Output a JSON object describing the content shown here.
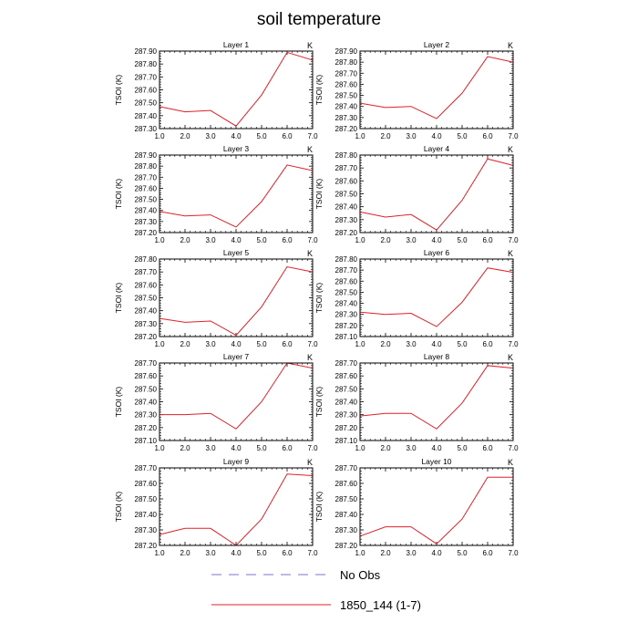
{
  "title": "soil temperature",
  "x_ticks": [
    "1.0",
    "2.0",
    "3.0",
    "4.0",
    "5.0",
    "6.0",
    "7.0"
  ],
  "legend": [
    {
      "label": "No Obs",
      "color": "#7777cc",
      "style": "dashed"
    },
    {
      "label": "1850_144 (1-7)",
      "color": "#e0202a",
      "style": "solid"
    }
  ],
  "chart_data": [
    {
      "type": "line",
      "title": "Layer 1",
      "ylabel": "TSOI  (K)",
      "unit": "K",
      "xlim": [
        1,
        7
      ],
      "ylim": [
        287.3,
        287.9
      ],
      "y_ticks": [
        "287.30",
        "287.40",
        "287.50",
        "287.60",
        "287.70",
        "287.80",
        "287.90"
      ],
      "series": [
        {
          "name": "1850_144 (1-7)",
          "x": [
            1,
            2,
            3,
            4,
            5,
            6,
            7
          ],
          "values": [
            287.47,
            287.43,
            287.44,
            287.32,
            287.56,
            287.89,
            287.83
          ]
        }
      ]
    },
    {
      "type": "line",
      "title": "Layer 2",
      "ylabel": "TSOI  (K)",
      "unit": "K",
      "xlim": [
        1,
        7
      ],
      "ylim": [
        287.2,
        287.9
      ],
      "y_ticks": [
        "287.20",
        "287.30",
        "287.40",
        "287.50",
        "287.60",
        "287.70",
        "287.80",
        "287.90"
      ],
      "series": [
        {
          "name": "1850_144 (1-7)",
          "x": [
            1,
            2,
            3,
            4,
            5,
            6,
            7
          ],
          "values": [
            287.43,
            287.39,
            287.4,
            287.29,
            287.52,
            287.85,
            287.8
          ]
        }
      ]
    },
    {
      "type": "line",
      "title": "Layer 3",
      "ylabel": "TSOI  (K)",
      "unit": "K",
      "xlim": [
        1,
        7
      ],
      "ylim": [
        287.2,
        287.9
      ],
      "y_ticks": [
        "287.20",
        "287.30",
        "287.40",
        "287.50",
        "287.60",
        "287.70",
        "287.80",
        "287.90"
      ],
      "series": [
        {
          "name": "1850_144 (1-7)",
          "x": [
            1,
            2,
            3,
            4,
            5,
            6,
            7
          ],
          "values": [
            287.39,
            287.35,
            287.36,
            287.25,
            287.48,
            287.81,
            287.76
          ]
        }
      ]
    },
    {
      "type": "line",
      "title": "Layer 4",
      "ylabel": "TSOI  (K)",
      "unit": "K",
      "xlim": [
        1,
        7
      ],
      "ylim": [
        287.2,
        287.8
      ],
      "y_ticks": [
        "287.20",
        "287.30",
        "287.40",
        "287.50",
        "287.60",
        "287.70",
        "287.80"
      ],
      "series": [
        {
          "name": "1850_144 (1-7)",
          "x": [
            1,
            2,
            3,
            4,
            5,
            6,
            7
          ],
          "values": [
            287.36,
            287.32,
            287.34,
            287.22,
            287.45,
            287.77,
            287.72
          ]
        }
      ]
    },
    {
      "type": "line",
      "title": "Layer 5",
      "ylabel": "TSOI  (K)",
      "unit": "K",
      "xlim": [
        1,
        7
      ],
      "ylim": [
        287.2,
        287.8
      ],
      "y_ticks": [
        "287.20",
        "287.30",
        "287.40",
        "287.50",
        "287.60",
        "287.70",
        "287.80"
      ],
      "series": [
        {
          "name": "1850_144 (1-7)",
          "x": [
            1,
            2,
            3,
            4,
            5,
            6,
            7
          ],
          "values": [
            287.34,
            287.31,
            287.32,
            287.21,
            287.43,
            287.74,
            287.7
          ]
        }
      ]
    },
    {
      "type": "line",
      "title": "Layer 6",
      "ylabel": "TSOI  (K)",
      "unit": "K",
      "xlim": [
        1,
        7
      ],
      "ylim": [
        287.1,
        287.8
      ],
      "y_ticks": [
        "287.10",
        "287.20",
        "287.30",
        "287.40",
        "287.50",
        "287.60",
        "287.70",
        "287.80"
      ],
      "series": [
        {
          "name": "1850_144 (1-7)",
          "x": [
            1,
            2,
            3,
            4,
            5,
            6,
            7
          ],
          "values": [
            287.32,
            287.3,
            287.31,
            287.19,
            287.41,
            287.72,
            287.68
          ]
        }
      ]
    },
    {
      "type": "line",
      "title": "Layer 7",
      "ylabel": "TSOI  (K)",
      "unit": "K",
      "xlim": [
        1,
        7
      ],
      "ylim": [
        287.1,
        287.7
      ],
      "y_ticks": [
        "287.10",
        "287.20",
        "287.30",
        "287.40",
        "287.50",
        "287.60",
        "287.70"
      ],
      "series": [
        {
          "name": "1850_144 (1-7)",
          "x": [
            1,
            2,
            3,
            4,
            5,
            6,
            7
          ],
          "values": [
            287.3,
            287.3,
            287.31,
            287.19,
            287.4,
            287.7,
            287.66
          ]
        }
      ]
    },
    {
      "type": "line",
      "title": "Layer 8",
      "ylabel": "TSOI  (K)",
      "unit": "K",
      "xlim": [
        1,
        7
      ],
      "ylim": [
        287.1,
        287.7
      ],
      "y_ticks": [
        "287.10",
        "287.20",
        "287.30",
        "287.40",
        "287.50",
        "287.60",
        "287.70"
      ],
      "series": [
        {
          "name": "1850_144 (1-7)",
          "x": [
            1,
            2,
            3,
            4,
            5,
            6,
            7
          ],
          "values": [
            287.29,
            287.31,
            287.31,
            287.19,
            287.39,
            287.68,
            287.66
          ]
        }
      ]
    },
    {
      "type": "line",
      "title": "Layer 9",
      "ylabel": "TSOI  (K)",
      "unit": "K",
      "xlim": [
        1,
        7
      ],
      "ylim": [
        287.2,
        287.7
      ],
      "y_ticks": [
        "287.20",
        "287.30",
        "287.40",
        "287.50",
        "287.60",
        "287.70"
      ],
      "series": [
        {
          "name": "1850_144 (1-7)",
          "x": [
            1,
            2,
            3,
            4,
            5,
            6,
            7
          ],
          "values": [
            287.27,
            287.31,
            287.31,
            287.2,
            287.37,
            287.66,
            287.65
          ]
        }
      ]
    },
    {
      "type": "line",
      "title": "Layer 10",
      "ylabel": "TSOI  (K)",
      "unit": "K",
      "xlim": [
        1,
        7
      ],
      "ylim": [
        287.2,
        287.7
      ],
      "y_ticks": [
        "287.20",
        "287.30",
        "287.40",
        "287.50",
        "287.60",
        "287.70"
      ],
      "series": [
        {
          "name": "1850_144 (1-7)",
          "x": [
            1,
            2,
            3,
            4,
            5,
            6,
            7
          ],
          "values": [
            287.26,
            287.32,
            287.32,
            287.21,
            287.37,
            287.64,
            287.64
          ]
        }
      ]
    }
  ]
}
